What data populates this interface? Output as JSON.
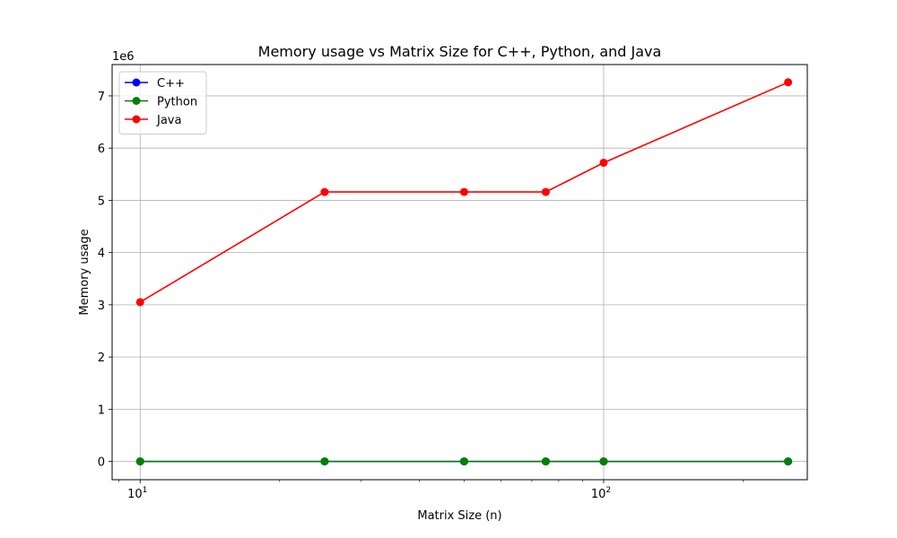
{
  "chart_data": {
    "type": "line",
    "title": "Memory usage vs Matrix Size for C++, Python, and Java",
    "xlabel": "Matrix Size (n)",
    "ylabel": "Memory usage",
    "x_scale": "log",
    "xlim": [
      8.7,
      275
    ],
    "ylim": [
      -350000,
      7600000
    ],
    "y_offset_label": "1e6",
    "y_ticks": [
      0,
      1000000,
      2000000,
      3000000,
      4000000,
      5000000,
      6000000,
      7000000
    ],
    "y_tick_labels": [
      "0",
      "1",
      "2",
      "3",
      "4",
      "5",
      "6",
      "7"
    ],
    "x_major_ticks": [
      {
        "base": "10",
        "exp": "1",
        "value": 10
      },
      {
        "base": "10",
        "exp": "2",
        "value": 100
      }
    ],
    "x_minor_ticks": [
      9,
      20,
      30,
      40,
      50,
      60,
      70,
      80,
      90,
      200
    ],
    "grid": true,
    "legend_position": "top-left",
    "x": [
      10,
      25,
      50,
      75,
      100,
      250
    ],
    "series": [
      {
        "name": "C++",
        "color": "#0000ff",
        "values": [
          0,
          0,
          0,
          0,
          0,
          0
        ]
      },
      {
        "name": "Python",
        "color": "#008000",
        "values": [
          0,
          0,
          0,
          0,
          0,
          0
        ]
      },
      {
        "name": "Java",
        "color": "#ff0000",
        "values": [
          3050000,
          5160000,
          5160000,
          5160000,
          5720000,
          7260000
        ]
      }
    ]
  }
}
